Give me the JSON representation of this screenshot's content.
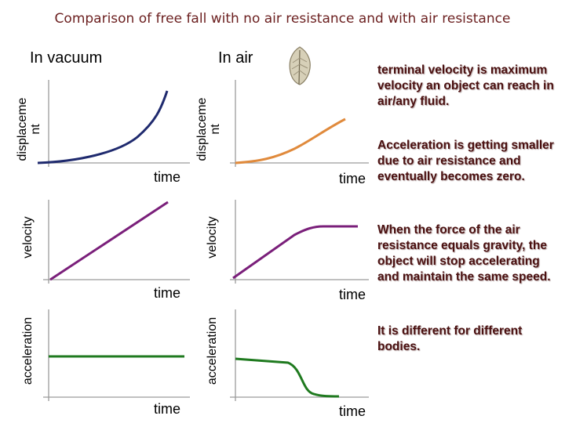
{
  "title": "Comparison of free fall with no air resistance and with air resistance",
  "columns": {
    "vacuum": "In vacuum",
    "air": "In air"
  },
  "feather_icon": "feather-icon",
  "axes": {
    "displacement_line1": "displaceme",
    "displacement_line2": "nt",
    "velocity": "velocity",
    "acceleration": "acceleration",
    "time": "time"
  },
  "notes": {
    "terminal_velocity": "terminal velocity is maximum velocity an object can reach in air/any fluid.",
    "acceleration_smaller": "Acceleration is getting smaller due to air resistance and eventually becomes zero.",
    "force_equals_gravity": "When the force of the air resistance equals gravity, the object will stop accelerating and maintain the same speed.",
    "different_bodies": "It is different for different bodies."
  },
  "colors": {
    "title": "#6b1f1f",
    "vacuum_displacement": "#1f2a6e",
    "air_displacement": "#e08a3c",
    "velocity": "#7a1f7a",
    "acceleration": "#1f7a1f",
    "notes": "#4a1010"
  },
  "chart_data": [
    {
      "type": "line",
      "panel": "vacuum-displacement",
      "xlabel": "time",
      "ylabel": "displacement",
      "shape": "parabolic increase"
    },
    {
      "type": "line",
      "panel": "air-displacement",
      "xlabel": "time",
      "ylabel": "displacement",
      "shape": "curve rising then becoming straight"
    },
    {
      "type": "line",
      "panel": "vacuum-velocity",
      "xlabel": "time",
      "ylabel": "velocity",
      "shape": "linear increase"
    },
    {
      "type": "line",
      "panel": "air-velocity",
      "xlabel": "time",
      "ylabel": "velocity",
      "shape": "increase then constant (terminal velocity)"
    },
    {
      "type": "line",
      "panel": "vacuum-acceleration",
      "xlabel": "time",
      "ylabel": "acceleration",
      "shape": "constant"
    },
    {
      "type": "line",
      "panel": "air-acceleration",
      "xlabel": "time",
      "ylabel": "acceleration",
      "shape": "decreasing to zero"
    }
  ]
}
